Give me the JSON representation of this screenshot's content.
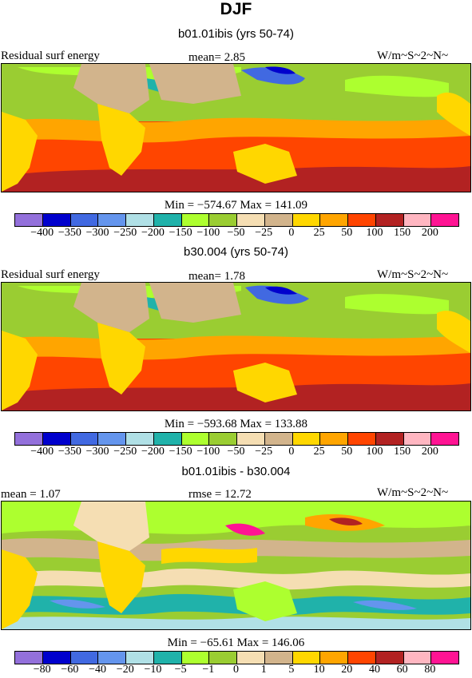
{
  "page": {
    "title": "DJF"
  },
  "panels": [
    {
      "subtitle": "b01.01ibis (yrs 50-74)",
      "left_label": "Residual surf energy",
      "mid_label": "mean=   2.85",
      "right_label": "W/m~S~2~N~",
      "minmax": "Min = −574.67 Max = 141.09",
      "colorbar": {
        "colors": [
          "#9370db",
          "#0000cd",
          "#4169e1",
          "#6495ed",
          "#b0e0e6",
          "#20b2aa",
          "#adff2f",
          "#9acd32",
          "#f5deb3",
          "#d2b48c",
          "#ffd700",
          "#ffa500",
          "#ff4500",
          "#b22222",
          "#ffb6c1",
          "#ff1493"
        ],
        "ticks": [
          "-400",
          "-350",
          "-300",
          "-250",
          "-200",
          "-150",
          "-100",
          "-50",
          "-25",
          "0",
          "25",
          "50",
          "100",
          "150",
          "200"
        ]
      }
    },
    {
      "subtitle": "b30.004 (yrs 50-74)",
      "left_label": "Residual surf energy",
      "mid_label": "mean=   1.78",
      "right_label": "W/m~S~2~N~",
      "minmax": "Min = −593.68 Max = 133.88",
      "colorbar": {
        "colors": [
          "#9370db",
          "#0000cd",
          "#4169e1",
          "#6495ed",
          "#b0e0e6",
          "#20b2aa",
          "#adff2f",
          "#9acd32",
          "#f5deb3",
          "#d2b48c",
          "#ffd700",
          "#ffa500",
          "#ff4500",
          "#b22222",
          "#ffb6c1",
          "#ff1493"
        ],
        "ticks": [
          "-400",
          "-350",
          "-300",
          "-250",
          "-200",
          "-150",
          "-100",
          "-50",
          "-25",
          "0",
          "25",
          "50",
          "100",
          "150",
          "200"
        ]
      }
    },
    {
      "subtitle": "b01.01ibis - b30.004",
      "left_label": "mean =    1.07",
      "mid_label": "rmse =   12.72",
      "right_label": "W/m~S~2~N~",
      "minmax": "Min = −65.61 Max = 146.06",
      "colorbar": {
        "colors": [
          "#9370db",
          "#0000cd",
          "#4169e1",
          "#6495ed",
          "#b0e0e6",
          "#20b2aa",
          "#adff2f",
          "#9acd32",
          "#f5deb3",
          "#d2b48c",
          "#ffd700",
          "#ffa500",
          "#ff4500",
          "#b22222",
          "#ffb6c1",
          "#ff1493"
        ],
        "ticks": [
          "-80",
          "-60",
          "-40",
          "-20",
          "-10",
          "-5",
          "-1",
          "0",
          "1",
          "5",
          "10",
          "20",
          "40",
          "60",
          "80"
        ]
      }
    }
  ],
  "chart_data": [
    {
      "type": "heatmap",
      "title": "b01.01ibis (yrs 50-74)",
      "variable": "Residual surf energy",
      "units": "W/m~S~2~N~",
      "mean": 2.85,
      "min": -574.67,
      "max": 141.09,
      "levels": [
        -400,
        -350,
        -300,
        -250,
        -200,
        -150,
        -100,
        -50,
        -25,
        0,
        25,
        50,
        100,
        150,
        200
      ]
    },
    {
      "type": "heatmap",
      "title": "b30.004 (yrs 50-74)",
      "variable": "Residual surf energy",
      "units": "W/m~S~2~N~",
      "mean": 1.78,
      "min": -593.68,
      "max": 133.88,
      "levels": [
        -400,
        -350,
        -300,
        -250,
        -200,
        -150,
        -100,
        -50,
        -25,
        0,
        25,
        50,
        100,
        150,
        200
      ]
    },
    {
      "type": "heatmap",
      "title": "b01.01ibis - b30.004",
      "units": "W/m~S~2~N~",
      "mean": 1.07,
      "rmse": 12.72,
      "min": -65.61,
      "max": 146.06,
      "levels": [
        -80,
        -60,
        -40,
        -20,
        -10,
        -5,
        -1,
        0,
        1,
        5,
        10,
        20,
        40,
        60,
        80
      ]
    }
  ]
}
